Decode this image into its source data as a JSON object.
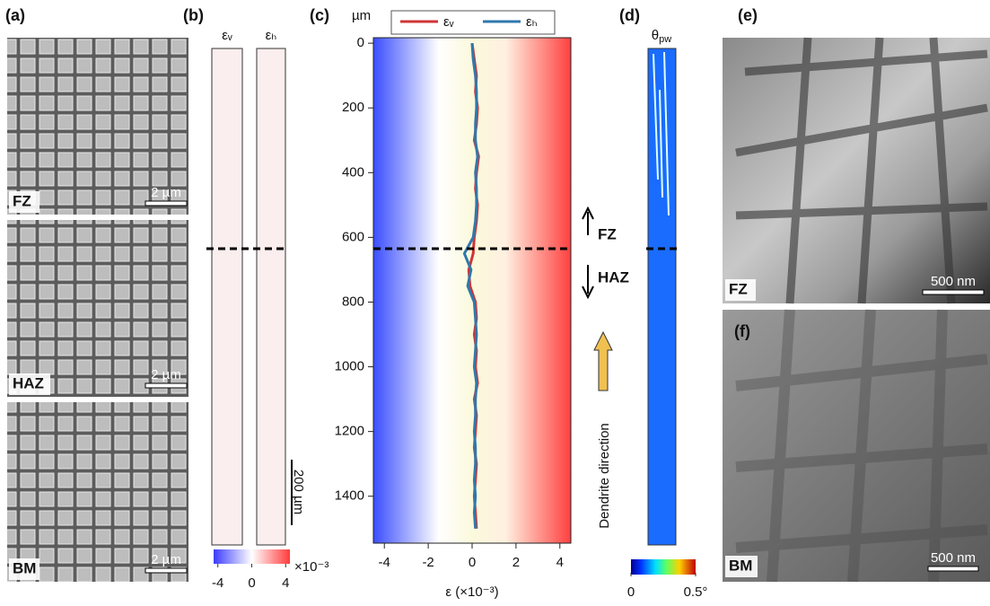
{
  "panels": {
    "a": {
      "label": "(a)",
      "regions": [
        "FZ",
        "HAZ",
        "BM"
      ],
      "scale_bars": [
        "2 µm",
        "2 µm",
        "2 µm"
      ]
    },
    "b": {
      "label": "(b)",
      "strain_labels": [
        "εᵥ",
        "εₕ"
      ],
      "scale_bar": "200 µm",
      "colorbar": {
        "lim": [
          -4.5,
          4.5
        ],
        "ticks": [
          -4,
          0,
          4
        ],
        "multiplier": "×10⁻³"
      }
    },
    "d": {
      "label": "(d)",
      "symbol": {
        "main": "θ",
        "sub": "pw"
      },
      "colorbar": {
        "lim": [
          0,
          0.5
        ],
        "ticks": [
          0,
          {
            "value": 0.5,
            "label": "0.5°"
          }
        ]
      },
      "arrows": [
        "FZ",
        "HAZ"
      ],
      "dendrite": "Dendrite direction"
    },
    "e": {
      "label": "(e)",
      "region": "FZ",
      "scale_bar": "500 nm"
    },
    "f": {
      "label": "(f)",
      "region": "BM",
      "scale_bar": "500 nm"
    }
  },
  "chart_data": {
    "type": "line",
    "panel_label": "(c)",
    "ylabel": "µm",
    "xlabel": "ε (×10⁻³)",
    "xlim": [
      -4.5,
      4.5
    ],
    "xticks": [
      -4,
      -2,
      0,
      2,
      4
    ],
    "ylim": [
      -17,
      1545
    ],
    "y_inverted": true,
    "yticks": [
      0,
      200,
      400,
      600,
      800,
      1000,
      1200,
      1400
    ],
    "boundary": 635,
    "x": [
      0,
      50,
      100,
      150,
      200,
      250,
      300,
      350,
      400,
      450,
      500,
      550,
      600,
      650,
      700,
      750,
      800,
      850,
      900,
      950,
      1000,
      1050,
      1100,
      1150,
      1200,
      1250,
      1300,
      1350,
      1400,
      1450,
      1500
    ],
    "series": [
      {
        "name": "εᵥ",
        "color": "#d03535",
        "values": [
          0.0,
          0.1,
          0.2,
          0.15,
          0.25,
          0.2,
          0.1,
          0.3,
          0.2,
          0.15,
          0.25,
          0.2,
          0.1,
          0.05,
          -0.15,
          -0.1,
          0.15,
          0.2,
          0.1,
          0.2,
          0.15,
          0.25,
          0.1,
          0.2,
          0.15,
          0.1,
          0.2,
          0.15,
          0.1,
          0.15,
          0.2
        ]
      },
      {
        "name": "εₕ",
        "color": "#2f78ad",
        "values": [
          0.0,
          0.05,
          0.15,
          0.2,
          0.2,
          0.15,
          0.15,
          0.25,
          0.15,
          0.2,
          0.2,
          0.15,
          0.05,
          -0.35,
          -0.05,
          -0.2,
          0.1,
          0.15,
          0.2,
          0.15,
          0.1,
          0.2,
          0.15,
          0.15,
          0.1,
          0.15,
          0.15,
          0.1,
          0.15,
          0.1,
          0.15
        ]
      }
    ]
  }
}
